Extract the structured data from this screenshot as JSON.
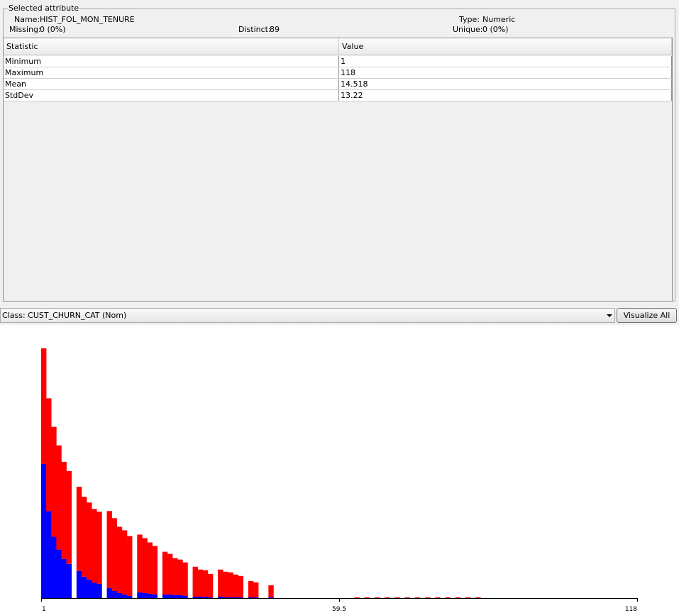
{
  "panel": {
    "title": "Selected attribute",
    "name_label": "Name:",
    "name_value": "HIST_FOL_MON_TENURE",
    "type_label": "Type:",
    "type_value": "Numeric",
    "missing_label": "Missing:",
    "missing_value": "0 (0%)",
    "distinct_label": "Distinct:",
    "distinct_value": "89",
    "unique_label": "Unique:",
    "unique_value": "0 (0%)"
  },
  "table": {
    "headers": [
      "Statistic",
      "Value"
    ],
    "rows": [
      [
        "Minimum",
        "1"
      ],
      [
        "Maximum",
        "118"
      ],
      [
        "Mean",
        "14.518"
      ],
      [
        "StdDev",
        "13.22"
      ]
    ]
  },
  "class_selector": {
    "selected": "Class: CUST_CHURN_CAT (Nom)"
  },
  "visualize_button": "Visualize All",
  "colors": {
    "class_a": "#ff0000",
    "class_b": "#0000ff"
  },
  "chart_data": {
    "type": "bar",
    "stacked": true,
    "x_tick_labels": [
      "1",
      "59.5",
      "118"
    ],
    "xlim": [
      1,
      118
    ],
    "series": [
      {
        "color": "#0000ff",
        "values": [
          188,
          122,
          86,
          68,
          55,
          48,
          0,
          38,
          30,
          26,
          22,
          20,
          0,
          14,
          10,
          7,
          5,
          3,
          0,
          8,
          7,
          6,
          5,
          0,
          5,
          5,
          4,
          4,
          3,
          0,
          2,
          2,
          2,
          1,
          0,
          2,
          1,
          1,
          1,
          1,
          0,
          1,
          1,
          0,
          0,
          1,
          0,
          0,
          0,
          0,
          0,
          0,
          0,
          0,
          0,
          0,
          0,
          0,
          0,
          0,
          0,
          0,
          0,
          0,
          0,
          0,
          0,
          0,
          0,
          0,
          0,
          0,
          0,
          0,
          0,
          0,
          0,
          0,
          0,
          0,
          0,
          0,
          0,
          0,
          0,
          0,
          0,
          0,
          0,
          0,
          0,
          0,
          0,
          0,
          0,
          0,
          0,
          0,
          0,
          0
        ]
      },
      {
        "color": "#ff0000",
        "values": [
          162,
          158,
          154,
          146,
          136,
          130,
          0,
          118,
          112,
          108,
          103,
          101,
          0,
          108,
          102,
          93,
          90,
          84,
          0,
          81,
          77,
          72,
          68,
          0,
          60,
          57,
          52,
          50,
          47,
          0,
          42,
          38,
          37,
          33,
          0,
          38,
          36,
          35,
          32,
          30,
          0,
          23,
          21,
          0,
          0,
          17,
          0,
          0,
          0,
          0,
          0,
          0,
          0,
          0,
          0,
          0,
          0,
          0,
          0,
          0,
          0,
          0,
          0,
          0,
          0,
          0,
          0,
          0,
          0,
          0,
          0,
          0,
          0,
          0,
          0,
          0,
          0,
          0,
          0,
          0,
          0,
          0,
          0,
          0,
          0,
          0,
          0,
          0,
          0,
          0,
          0,
          0,
          0,
          0,
          0,
          0,
          0,
          0,
          0,
          0
        ]
      }
    ]
  }
}
